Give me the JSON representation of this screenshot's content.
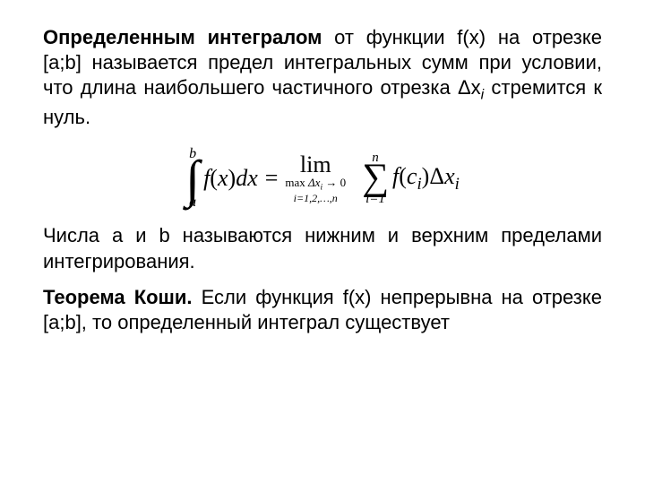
{
  "colors": {
    "text": "#000000",
    "background": "#ffffff"
  },
  "typography": {
    "body_font": "Arial",
    "body_size_pt": 16,
    "formula_font": "Times New Roman",
    "formula_size_pt": 20
  },
  "paragraph1": {
    "bold_lead": "Определенным интегралом",
    "rest_a": " от функции f(x) на отрезке [a;b] называется предел интегральных сумм при условии, что длина наибольшего частичного отрезка ",
    "delta": "Δx",
    "delta_sub": "i",
    "rest_b": " стремится к нуль."
  },
  "formula": {
    "int_lower": "a",
    "int_upper": "b",
    "integrand_a": "f",
    "integrand_b": "(",
    "integrand_c": "x",
    "integrand_d": ")",
    "integrand_e": "dx",
    "equals": "=",
    "lim_word": "lim",
    "lim_sub_line1_a": "max ",
    "lim_sub_line1_b": "Δx",
    "lim_sub_line1_sub": "i",
    "lim_sub_line1_c": " → 0",
    "lim_sub_line2": "i=1,2,…,n",
    "sum_top": "n",
    "sum_bottom": "i=1",
    "sum_body_a": "f",
    "sum_body_b": "(",
    "sum_body_c": "c",
    "sum_body_c_sub": "i",
    "sum_body_d": ")Δ",
    "sum_body_e": "x",
    "sum_body_e_sub": "i"
  },
  "paragraph2": {
    "line1": "Числа a и b называются нижним и верхним пределами интегрирования.",
    "bold_lead": "Теорема Коши.",
    "rest": " Если функция f(x) непрерывна на отрезке [a;b], то определенный интеграл существует"
  }
}
